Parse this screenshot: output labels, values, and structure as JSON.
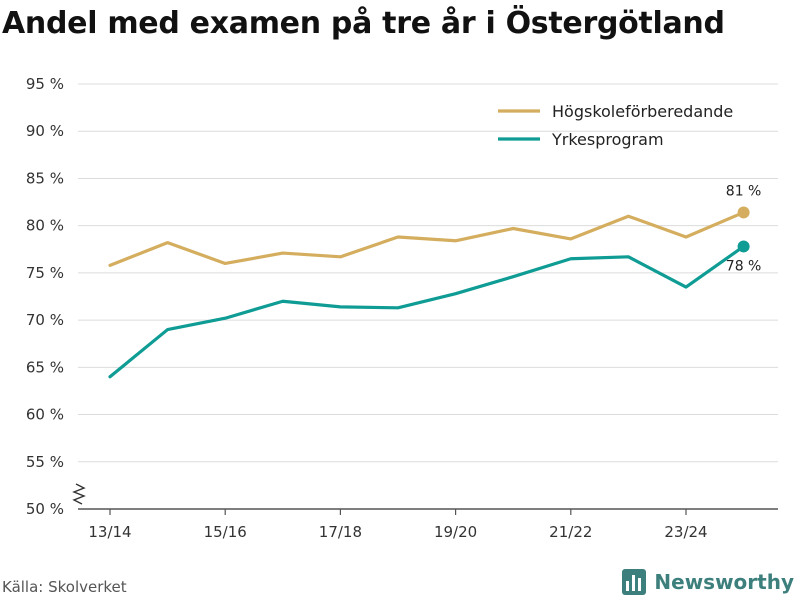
{
  "chart_data": {
    "type": "line",
    "title": "Andel med examen på tre år i Östergötland",
    "x": [
      "13/14",
      "14/15",
      "15/16",
      "16/17",
      "17/18",
      "18/19",
      "19/20",
      "20/21",
      "21/22",
      "22/23",
      "23/24",
      "24/25"
    ],
    "x_tick_labels": [
      "13/14",
      "15/16",
      "17/18",
      "19/20",
      "21/22",
      "23/24"
    ],
    "y_ticks": [
      50,
      55,
      60,
      65,
      70,
      75,
      80,
      85,
      90,
      95
    ],
    "ylim": [
      50,
      95
    ],
    "y_unit": " %",
    "series": [
      {
        "name": "Högskoleförberedande",
        "color": "#d4ae5e",
        "values": [
          75.8,
          78.2,
          76.0,
          77.1,
          76.7,
          78.8,
          78.4,
          79.7,
          78.6,
          81.0,
          78.8,
          81.4
        ],
        "end_label": "81 %"
      },
      {
        "name": "Yrkesprogram",
        "color": "#0f9c95",
        "values": [
          64.0,
          69.0,
          70.2,
          72.0,
          71.4,
          71.3,
          72.8,
          74.6,
          76.5,
          76.7,
          73.5,
          77.8
        ],
        "end_label": "78 %"
      }
    ],
    "legend_position": "top-right",
    "grid": true
  },
  "source": "Källa: Skolverket",
  "brand": "Newsworthy"
}
